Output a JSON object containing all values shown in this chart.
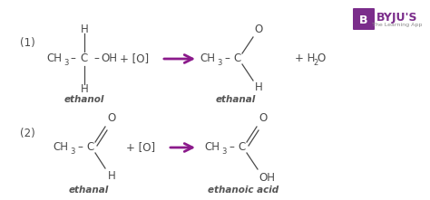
{
  "bg_color": "#ffffff",
  "text_color": "#4a4a4a",
  "arrow_color": "#8B1A8B",
  "label_color": "#555555",
  "figsize": [
    4.74,
    2.21
  ],
  "dpi": 100,
  "reaction1_number": "(1)",
  "reaction1_reactant_label": "ethanol",
  "reaction1_product_label": "ethanal",
  "reaction2_number": "(2)",
  "reaction2_reactant_label": "ethanal",
  "reaction2_product_label": "ethanoic acid",
  "byju_box_color": "#7B2D8B",
  "byju_text_color": "#7B2D8B"
}
